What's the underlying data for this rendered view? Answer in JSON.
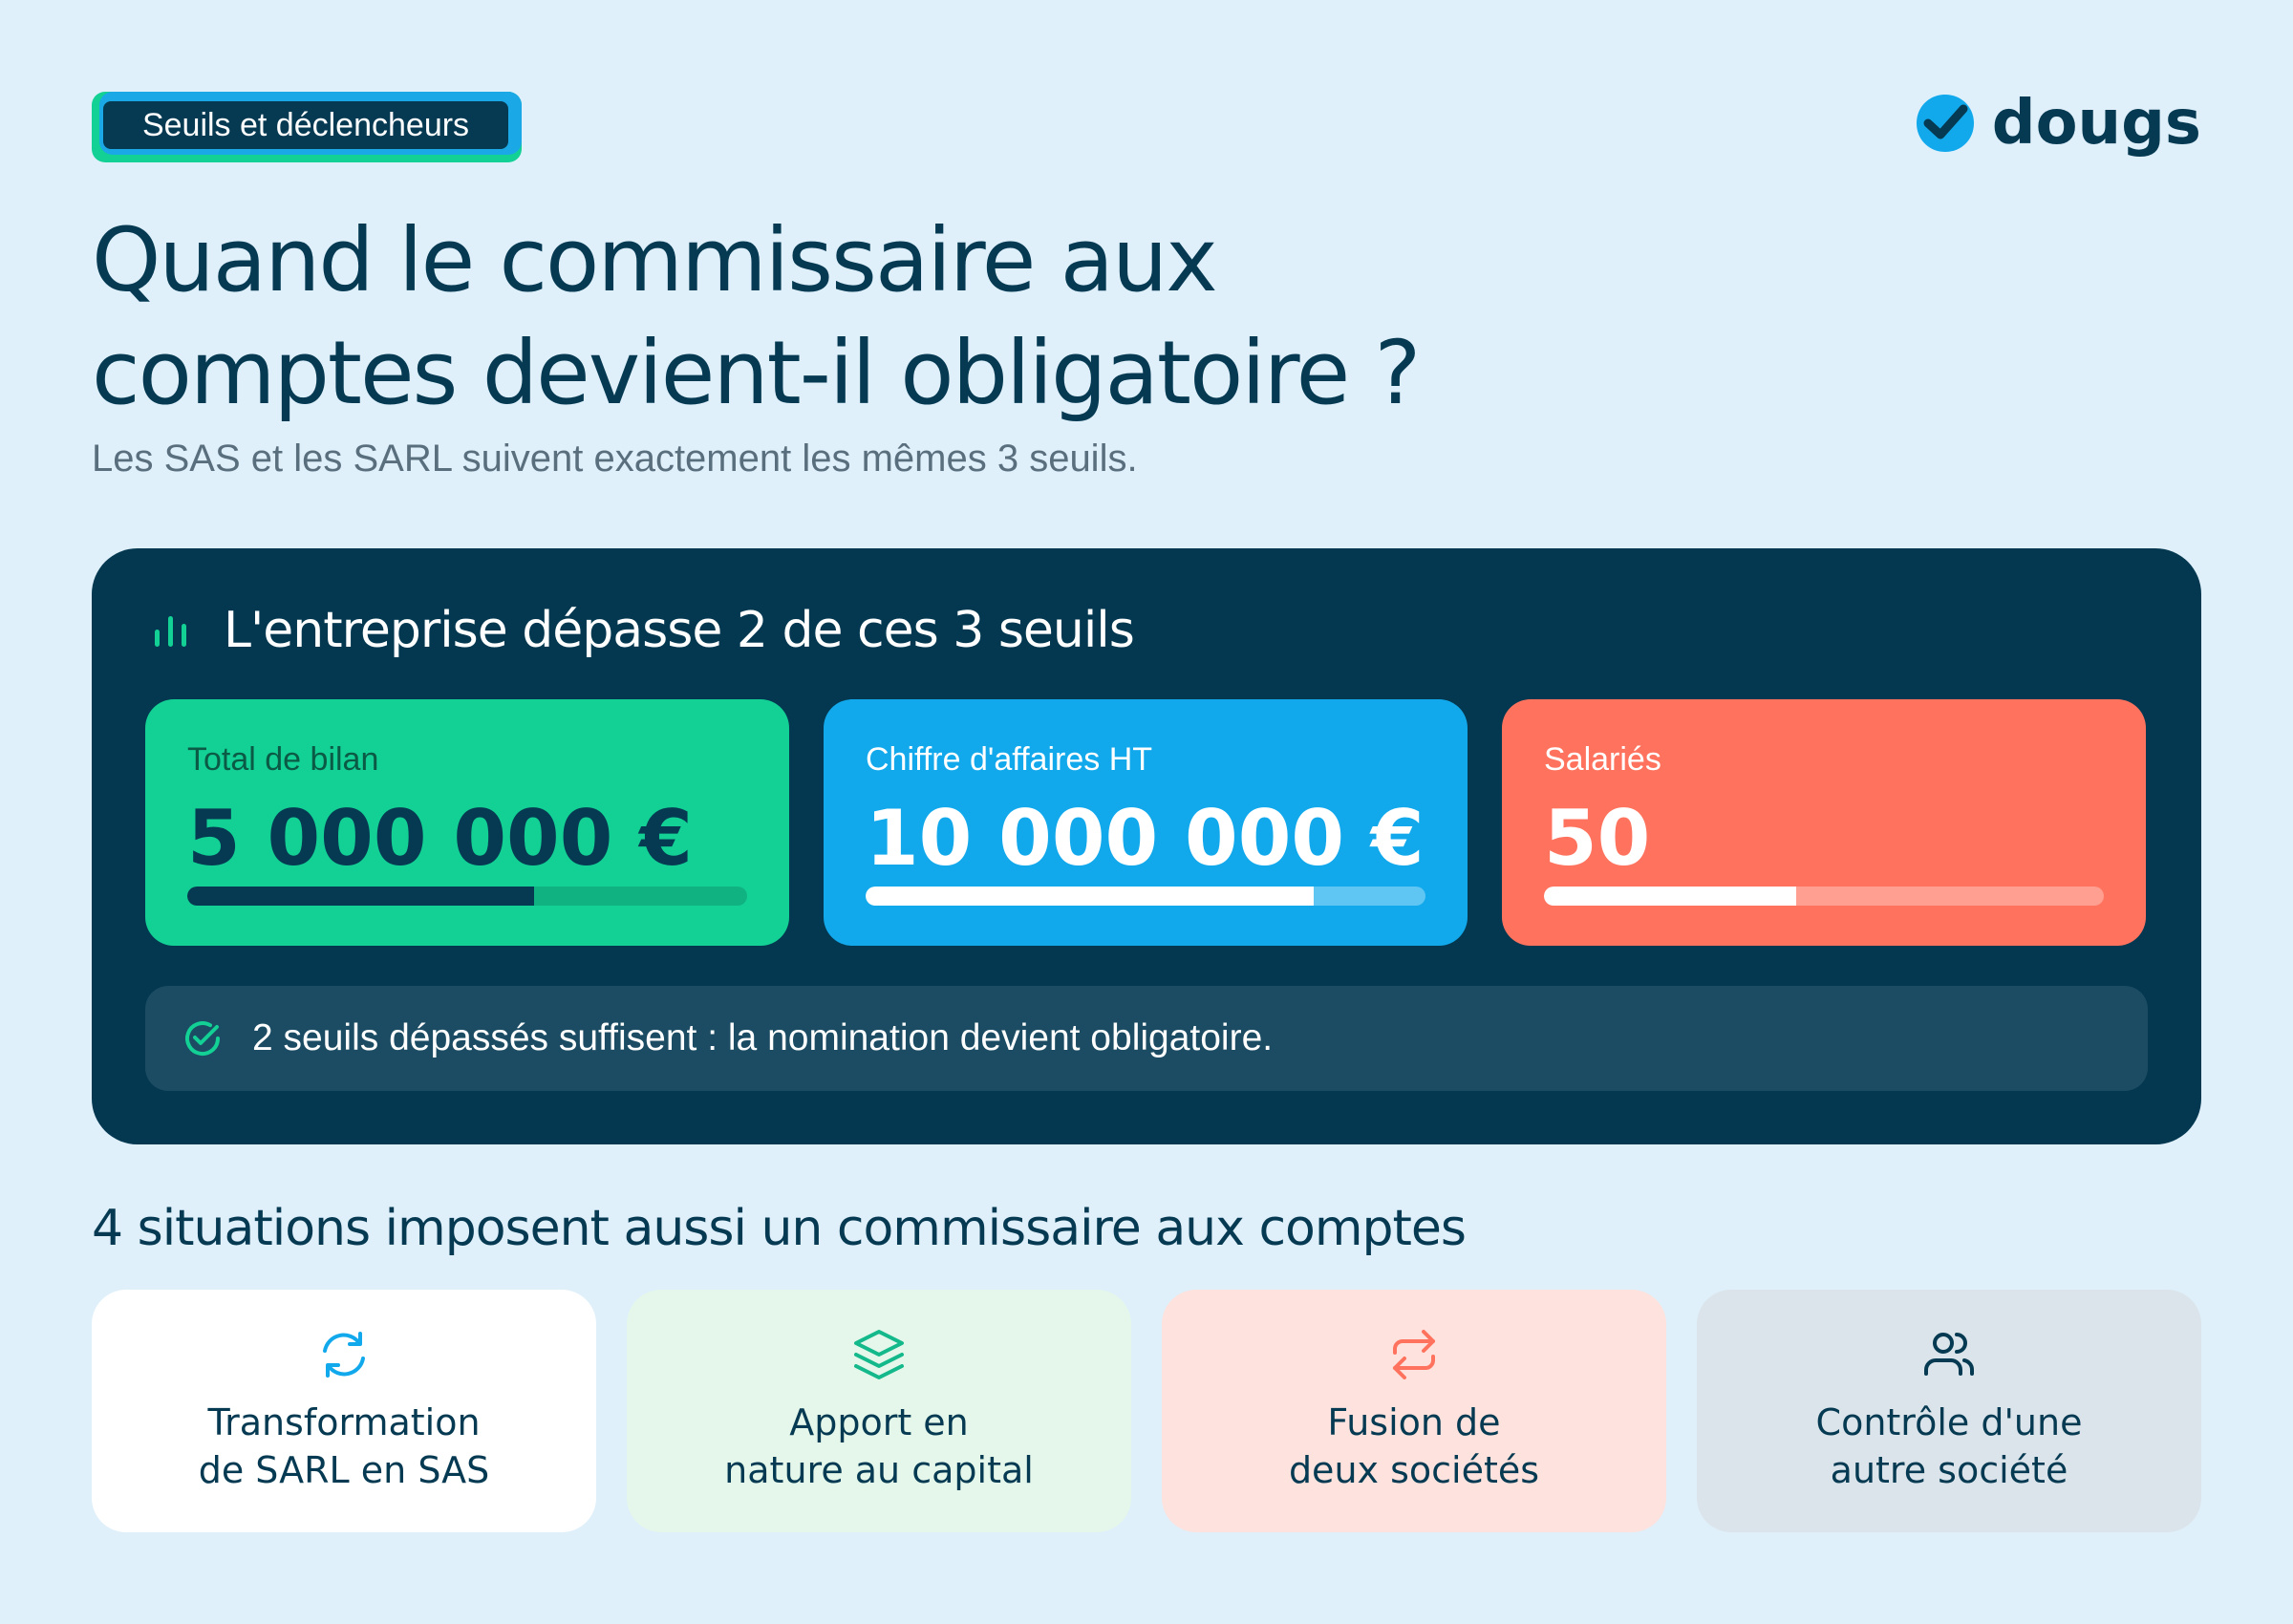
{
  "header": {
    "tag_label": "Seuils et déclencheurs",
    "logo_text": "dougs",
    "title_line1": "Quand le commissaire aux",
    "title_line2": "comptes devient-il obligatoire ?",
    "subtitle": "Les SAS et les SARL suivent exactement les mêmes 3 seuils."
  },
  "thresholds": {
    "heading_icon": "bar-chart-icon",
    "heading": "L'entreprise dépasse 2 de ces 3 seuils",
    "cards": [
      {
        "label": "Total de bilan",
        "value": "5 000 000 €",
        "progress": 0.62,
        "color": "#13d095"
      },
      {
        "label": "Chiffre d'affaires HT",
        "value": "10 000 000 €",
        "progress": 0.8,
        "color": "#12a9ec"
      },
      {
        "label": "Salariés",
        "value": "50",
        "progress": 0.45,
        "color": "#ff735e"
      }
    ],
    "notice_icon": "check-circle-icon",
    "notice": "2 seuils dépassés suffisent : la nomination devient obligatoire."
  },
  "situations": {
    "heading": "4 situations imposent aussi un commissaire aux comptes",
    "items": [
      {
        "icon": "refresh-icon",
        "text": "Transformation\nde SARL en SAS",
        "color": "#12a9ec"
      },
      {
        "icon": "layers-icon",
        "text": "Apport en\nnature au capital",
        "color": "#13d095"
      },
      {
        "icon": "swap-arrows-icon",
        "text": "Fusion de\ndeux sociétés",
        "color": "#ff735e"
      },
      {
        "icon": "users-icon",
        "text": "Contrôle d'une\nautre société",
        "color": "#063a52"
      }
    ]
  }
}
